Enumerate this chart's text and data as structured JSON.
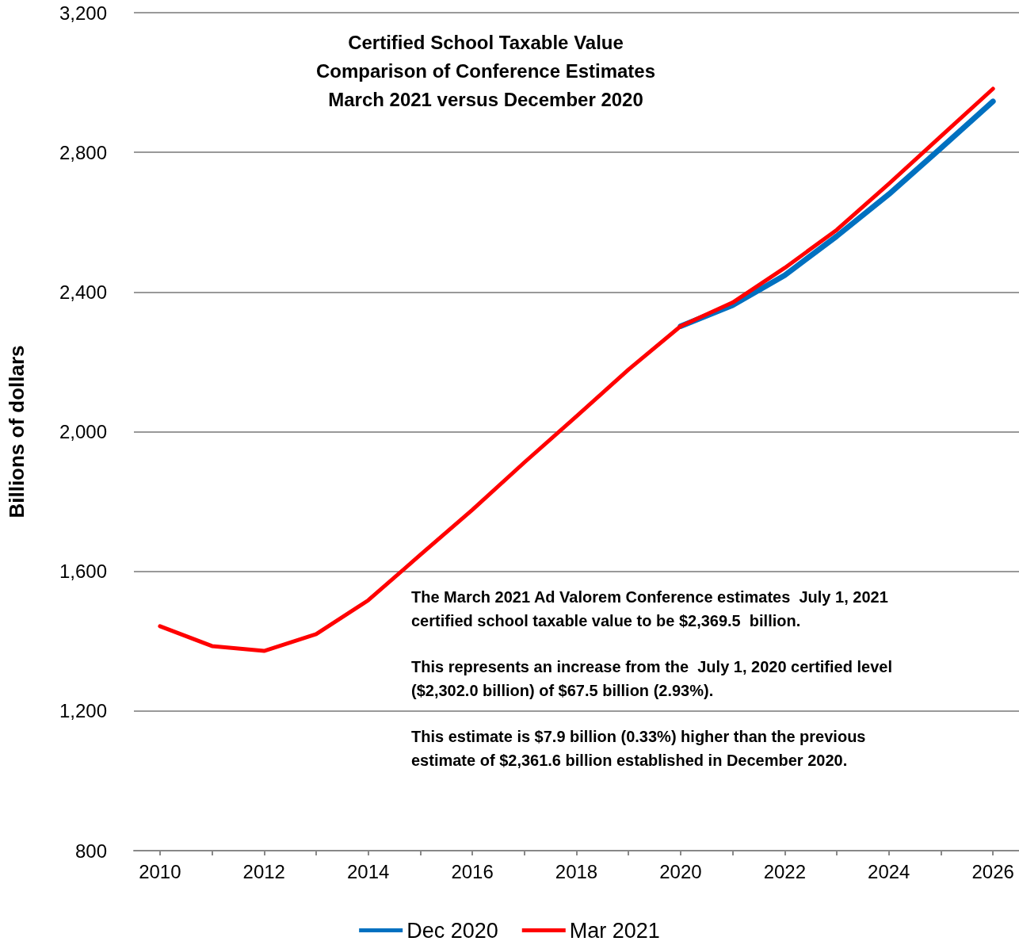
{
  "chart_data": {
    "type": "line",
    "title": "Certified School Taxable Value\nComparison of Conference Estimates\nMarch 2021 versus December 2020",
    "ylabel": "Billions of dollars",
    "x": [
      2010,
      2011,
      2012,
      2013,
      2014,
      2015,
      2016,
      2017,
      2018,
      2019,
      2020,
      2021,
      2022,
      2023,
      2024,
      2025,
      2026
    ],
    "series": [
      {
        "name": "Dec 2020",
        "color": "#0070c0",
        "values": [
          null,
          null,
          null,
          null,
          null,
          null,
          null,
          null,
          null,
          null,
          2302,
          2362,
          2448,
          2560,
          2680,
          2812,
          2946
        ]
      },
      {
        "name": "Mar 2021",
        "color": "#ff0000",
        "values": [
          1443,
          1386,
          1372,
          1420,
          1517,
          1647,
          1776,
          1912,
          2044,
          2178,
          2302,
          2370,
          2469,
          2578,
          2710,
          2846,
          2982
        ]
      }
    ],
    "xlim": [
      2009.5,
      2026.5
    ],
    "xticks": [
      2010,
      {
        "value": 2011,
        "label": null
      },
      2012,
      {
        "value": 2013,
        "label": null
      },
      2014,
      {
        "value": 2015,
        "label": null
      },
      2016,
      {
        "value": 2017,
        "label": null
      },
      2018,
      {
        "value": 2019,
        "label": null
      },
      2020,
      {
        "value": 2021,
        "label": null
      },
      2022,
      {
        "value": 2023,
        "label": null
      },
      2024,
      {
        "value": 2025,
        "label": null
      },
      2026
    ],
    "ylim": [
      800,
      3200
    ],
    "yticks": [
      {
        "value": 800,
        "label": "800"
      },
      {
        "value": 1200,
        "label": "1,200"
      },
      {
        "value": 1600,
        "label": "1,600"
      },
      {
        "value": 2000,
        "label": "2,000"
      },
      {
        "value": 2400,
        "label": "2,400"
      },
      {
        "value": 2800,
        "label": "2,800"
      },
      {
        "value": 3200,
        "label": "3,200"
      }
    ],
    "grid": "y",
    "legend": "bottom",
    "marker": "none",
    "line_style": "solid",
    "annotations": [
      "The March 2021 Ad Valorem Conference estimates  July 1, 2021\ncertified school taxable value to be $2,369.5  billion.",
      "This represents an increase from the  July 1, 2020 certified level\n($2,302.0 billion) of $67.5 billion (2.93%).",
      "This estimate is $7.9 billion (0.33%) higher than the previous\nestimate of $2,361.6 billion established in December 2020."
    ]
  }
}
